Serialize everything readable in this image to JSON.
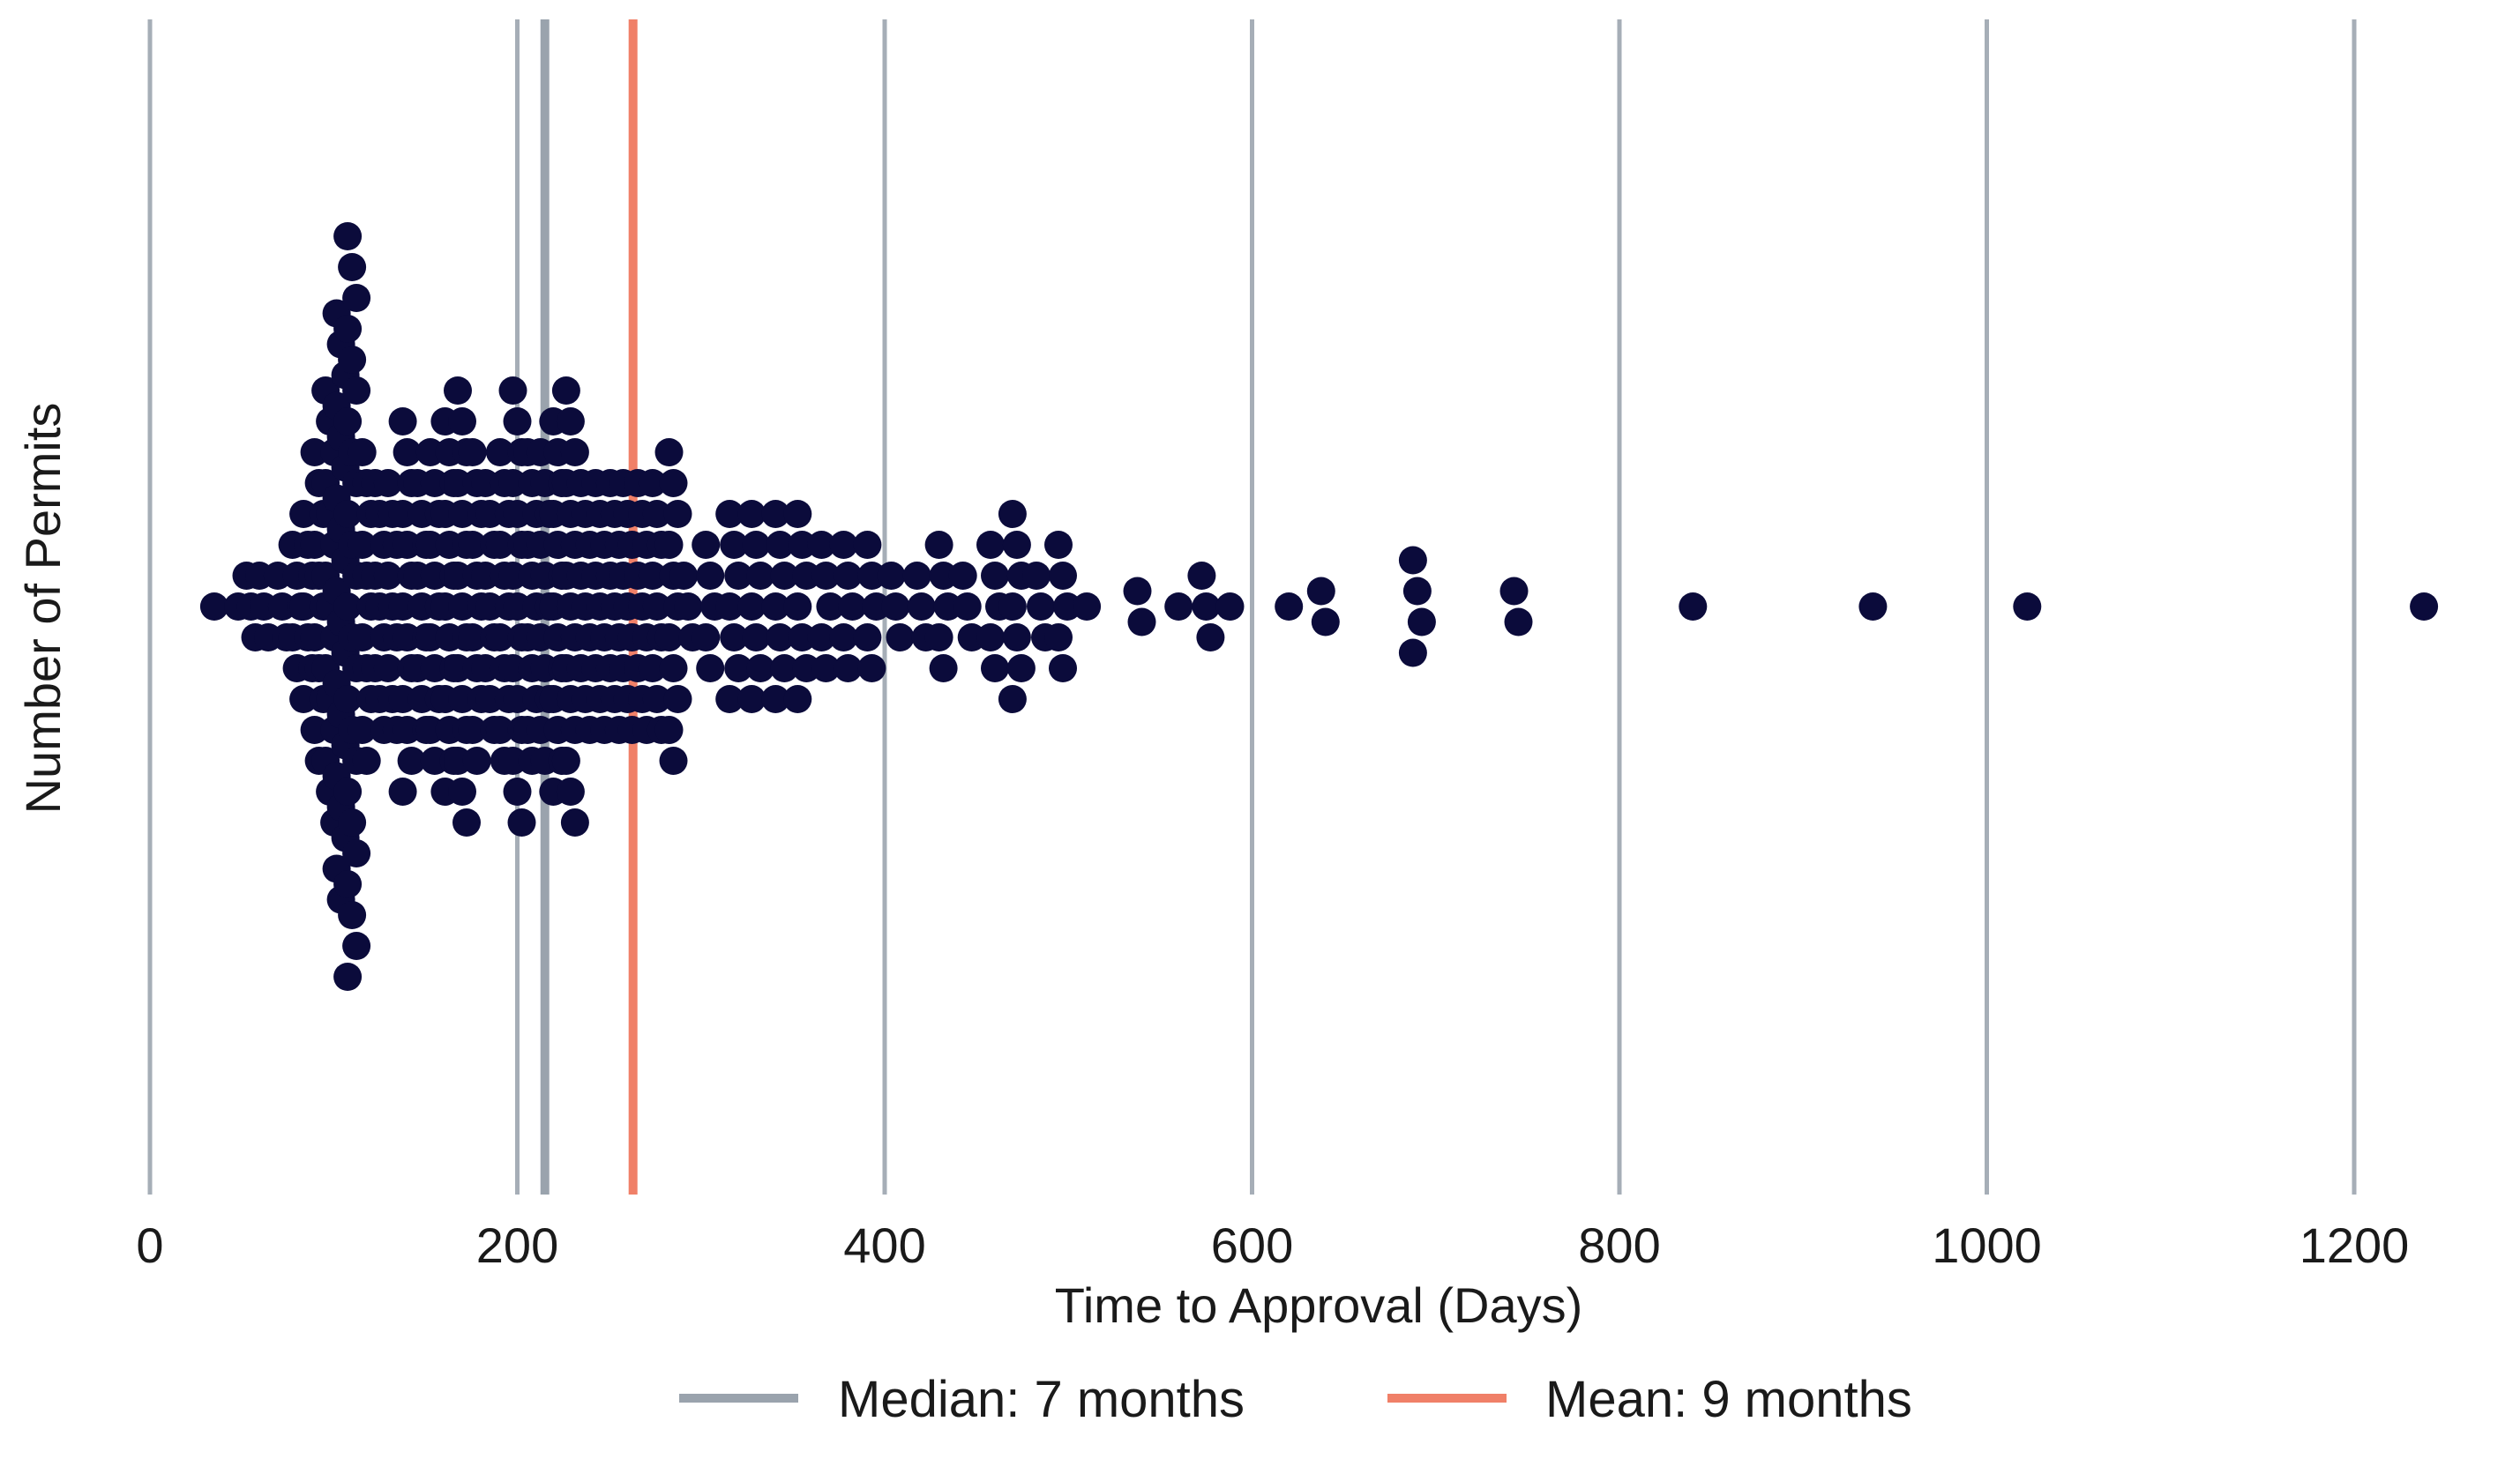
{
  "chart_data": {
    "type": "scatter",
    "subtype": "beeswarm",
    "title": "",
    "xlabel": "Time to Approval (Days)",
    "ylabel": "Number of Permits",
    "xlim": [
      0,
      1250
    ],
    "x_ticks": [
      "0",
      "200",
      "400",
      "600",
      "800",
      "1000",
      "1200"
    ],
    "x_tick_values": [
      0,
      200,
      400,
      600,
      800,
      1000,
      1200
    ],
    "grid": "vertical",
    "legend": {
      "placement": "bottom-center",
      "entries": [
        {
          "label": "Median: 7 months",
          "color": "#9aa3ad",
          "value": 215
        },
        {
          "label": "Mean: 9 months",
          "color": "#f08068",
          "value": 263
        }
      ]
    },
    "point_color": "#0b0b3b",
    "distribution": [
      {
        "x": 35,
        "count": 1
      },
      {
        "x": 48,
        "count": 1
      },
      {
        "x": 55,
        "count": 3
      },
      {
        "x": 62,
        "count": 3
      },
      {
        "x": 72,
        "count": 3
      },
      {
        "x": 80,
        "count": 5
      },
      {
        "x": 86,
        "count": 7
      },
      {
        "x": 92,
        "count": 11
      },
      {
        "x": 98,
        "count": 15
      },
      {
        "x": 104,
        "count": 20
      },
      {
        "x": 110,
        "count": 25
      },
      {
        "x": 118,
        "count": 11
      },
      {
        "x": 125,
        "count": 9
      },
      {
        "x": 132,
        "count": 9
      },
      {
        "x": 140,
        "count": 13
      },
      {
        "x": 148,
        "count": 9
      },
      {
        "x": 155,
        "count": 11
      },
      {
        "x": 163,
        "count": 13
      },
      {
        "x": 170,
        "count": 15
      },
      {
        "x": 178,
        "count": 11
      },
      {
        "x": 185,
        "count": 9
      },
      {
        "x": 193,
        "count": 11
      },
      {
        "x": 200,
        "count": 15
      },
      {
        "x": 208,
        "count": 11
      },
      {
        "x": 215,
        "count": 11
      },
      {
        "x": 222,
        "count": 13
      },
      {
        "x": 229,
        "count": 15
      },
      {
        "x": 237,
        "count": 9
      },
      {
        "x": 245,
        "count": 9
      },
      {
        "x": 253,
        "count": 9
      },
      {
        "x": 260,
        "count": 9
      },
      {
        "x": 268,
        "count": 9
      },
      {
        "x": 276,
        "count": 9
      },
      {
        "x": 285,
        "count": 11
      },
      {
        "x": 293,
        "count": 3
      },
      {
        "x": 305,
        "count": 5
      },
      {
        "x": 318,
        "count": 7
      },
      {
        "x": 330,
        "count": 7
      },
      {
        "x": 343,
        "count": 7
      },
      {
        "x": 355,
        "count": 7
      },
      {
        "x": 368,
        "count": 5
      },
      {
        "x": 380,
        "count": 5
      },
      {
        "x": 393,
        "count": 5
      },
      {
        "x": 406,
        "count": 3
      },
      {
        "x": 420,
        "count": 3
      },
      {
        "x": 432,
        "count": 5
      },
      {
        "x": 445,
        "count": 3
      },
      {
        "x": 460,
        "count": 5
      },
      {
        "x": 472,
        "count": 7
      },
      {
        "x": 485,
        "count": 3
      },
      {
        "x": 497,
        "count": 5
      },
      {
        "x": 510,
        "count": 1
      },
      {
        "x": 540,
        "count": 2
      },
      {
        "x": 560,
        "count": 1
      },
      {
        "x": 575,
        "count": 3
      },
      {
        "x": 588,
        "count": 1
      },
      {
        "x": 620,
        "count": 1
      },
      {
        "x": 640,
        "count": 2
      },
      {
        "x": 690,
        "count": 4
      },
      {
        "x": 745,
        "count": 2
      },
      {
        "x": 840,
        "count": 1
      },
      {
        "x": 938,
        "count": 1
      },
      {
        "x": 1022,
        "count": 1
      },
      {
        "x": 1238,
        "count": 1
      }
    ]
  }
}
